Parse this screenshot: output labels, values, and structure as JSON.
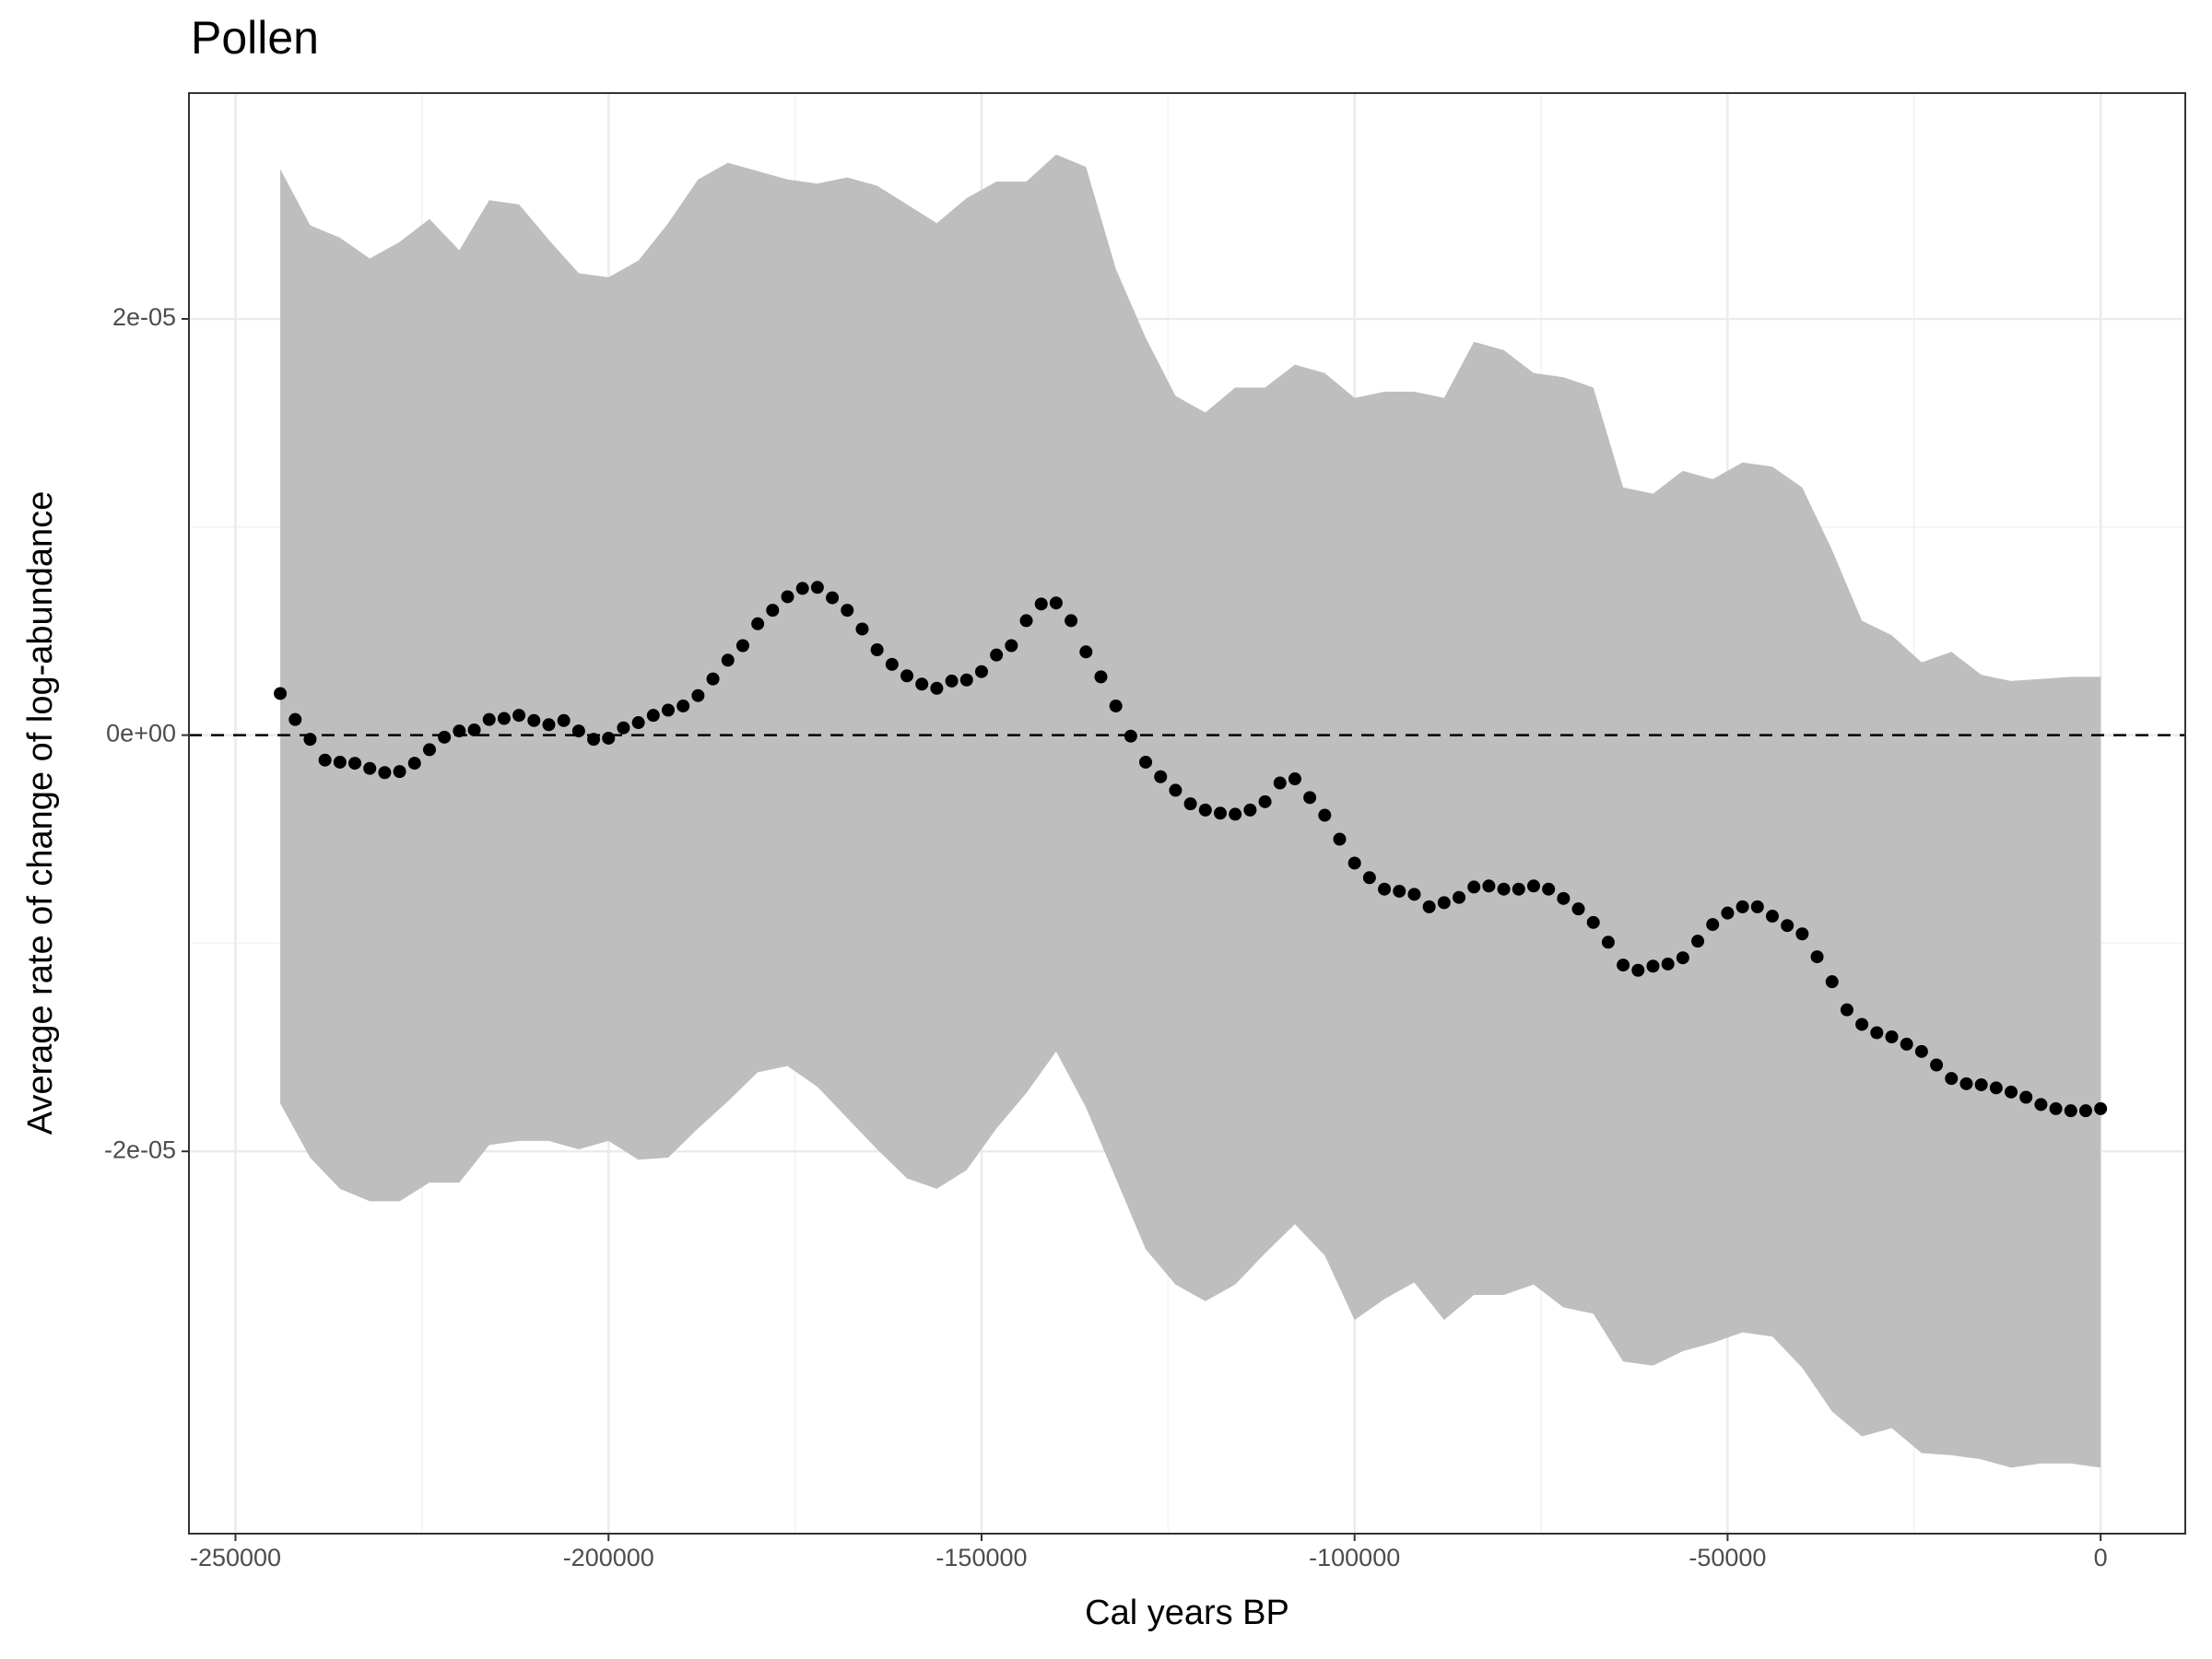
{
  "chart_data": {
    "type": "line",
    "title": "Pollen",
    "x_label": "Cal years BP",
    "y_label": "Average rate of change of log-abundance",
    "xlim": [
      -256240,
      11346
    ],
    "ylim": [
      -3.837e-05,
      3.085e-05
    ],
    "xticks": [
      -250000,
      -200000,
      -150000,
      -100000,
      -50000,
      0
    ],
    "yticks": [
      {
        "value": -2e-05,
        "label": "-2e-05"
      },
      {
        "value": 0,
        "label": "0e+00"
      },
      {
        "value": 2e-05,
        "label": "2e-05"
      }
    ],
    "grid": true,
    "hline": 0,
    "ribbon": {
      "color": "#bebebe",
      "x": [
        -244000,
        -240000,
        -236000,
        -232000,
        -228000,
        -224000,
        -220000,
        -216000,
        -212000,
        -208000,
        -204000,
        -200000,
        -196000,
        -192000,
        -188000,
        -184000,
        -180000,
        -176000,
        -172000,
        -168000,
        -164000,
        -160000,
        -156000,
        -152000,
        -148000,
        -144000,
        -140000,
        -136000,
        -132000,
        -128000,
        -124000,
        -120000,
        -116000,
        -112000,
        -108000,
        -104000,
        -100000,
        -96000,
        -92000,
        -88000,
        -84000,
        -80000,
        -76000,
        -72000,
        -68000,
        -64000,
        -60000,
        -56000,
        -52000,
        -48000,
        -44000,
        -40000,
        -36000,
        -32000,
        -28000,
        -24000,
        -20000,
        -16000,
        -12000,
        -8000,
        -4000,
        0
      ],
      "upper": [
        2.72e-05,
        2.45e-05,
        2.39e-05,
        2.29e-05,
        2.37e-05,
        2.48e-05,
        2.33e-05,
        2.57e-05,
        2.55e-05,
        2.38e-05,
        2.22e-05,
        2.2e-05,
        2.28e-05,
        2.46e-05,
        2.67e-05,
        2.75e-05,
        2.71e-05,
        2.67e-05,
        2.65e-05,
        2.68e-05,
        2.64e-05,
        2.55e-05,
        2.46e-05,
        2.58e-05,
        2.66e-05,
        2.66e-05,
        2.79e-05,
        2.73e-05,
        2.24e-05,
        1.91e-05,
        1.63e-05,
        1.55e-05,
        1.67e-05,
        1.67e-05,
        1.78e-05,
        1.74e-05,
        1.62e-05,
        1.65e-05,
        1.65e-05,
        1.62e-05,
        1.89e-05,
        1.85e-05,
        1.74e-05,
        1.72e-05,
        1.67e-05,
        1.19e-05,
        1.16e-05,
        1.27e-05,
        1.23e-05,
        1.31e-05,
        1.29e-05,
        1.19e-05,
        8.9e-06,
        5.5e-06,
        4.8e-06,
        3.5e-06,
        4e-06,
        2.9e-06,
        2.6e-06,
        2.7e-06,
        2.8e-06,
        2.8e-06
      ],
      "lower": [
        -1.77e-05,
        -2.03e-05,
        -2.18e-05,
        -2.24e-05,
        -2.24e-05,
        -2.15e-05,
        -2.15e-05,
        -1.97e-05,
        -1.95e-05,
        -1.95e-05,
        -1.99e-05,
        -1.95e-05,
        -2.04e-05,
        -2.03e-05,
        -1.89e-05,
        -1.76e-05,
        -1.62e-05,
        -1.59e-05,
        -1.69e-05,
        -1.84e-05,
        -1.99e-05,
        -2.13e-05,
        -2.18e-05,
        -2.09e-05,
        -1.89e-05,
        -1.72e-05,
        -1.52e-05,
        -1.79e-05,
        -2.13e-05,
        -2.47e-05,
        -2.64e-05,
        -2.72e-05,
        -2.64e-05,
        -2.49e-05,
        -2.35e-05,
        -2.5e-05,
        -2.81e-05,
        -2.71e-05,
        -2.63e-05,
        -2.81e-05,
        -2.69e-05,
        -2.69e-05,
        -2.64e-05,
        -2.75e-05,
        -2.78e-05,
        -3.01e-05,
        -3.03e-05,
        -2.96e-05,
        -2.92e-05,
        -2.87e-05,
        -2.89e-05,
        -3.04e-05,
        -3.25e-05,
        -3.37e-05,
        -3.33e-05,
        -3.45e-05,
        -3.46e-05,
        -3.48e-05,
        -3.52e-05,
        -3.5e-05,
        -3.5e-05,
        -3.52e-05
      ]
    },
    "points": {
      "color": "#000000",
      "x": [
        -244000,
        -242000,
        -240000,
        -238000,
        -236000,
        -234000,
        -232000,
        -230000,
        -228000,
        -226000,
        -224000,
        -222000,
        -220000,
        -218000,
        -216000,
        -214000,
        -212000,
        -210000,
        -208000,
        -206000,
        -204000,
        -202000,
        -200000,
        -198000,
        -196000,
        -194000,
        -192000,
        -190000,
        -188000,
        -186000,
        -184000,
        -182000,
        -180000,
        -178000,
        -176000,
        -174000,
        -172000,
        -170000,
        -168000,
        -166000,
        -164000,
        -162000,
        -160000,
        -158000,
        -156000,
        -154000,
        -152000,
        -150000,
        -148000,
        -146000,
        -144000,
        -142000,
        -140000,
        -138000,
        -136000,
        -134000,
        -132000,
        -130000,
        -128000,
        -126000,
        -124000,
        -122000,
        -120000,
        -118000,
        -116000,
        -114000,
        -112000,
        -110000,
        -108000,
        -106000,
        -104000,
        -102000,
        -100000,
        -98000,
        -96000,
        -94000,
        -92000,
        -90000,
        -88000,
        -86000,
        -84000,
        -82000,
        -80000,
        -78000,
        -76000,
        -74000,
        -72000,
        -70000,
        -68000,
        -66000,
        -64000,
        -62000,
        -60000,
        -58000,
        -56000,
        -54000,
        -52000,
        -50000,
        -48000,
        -46000,
        -44000,
        -42000,
        -40000,
        -38000,
        -36000,
        -34000,
        -32000,
        -30000,
        -28000,
        -26000,
        -24000,
        -22000,
        -20000,
        -18000,
        -16000,
        -14000,
        -12000,
        -10000,
        -8000,
        -6000,
        -4000,
        -2000,
        0
      ],
      "values": [
        2e-06,
        7.5e-07,
        -2e-07,
        -1.2e-06,
        -1.3e-06,
        -1.35e-06,
        -1.6e-06,
        -1.8e-06,
        -1.75e-06,
        -1.35e-06,
        -7e-07,
        -1e-07,
        2e-07,
        2.5e-07,
        7.5e-07,
        8e-07,
        9.5e-07,
        7e-07,
        5e-07,
        7e-07,
        2e-07,
        -2e-07,
        -1.5e-07,
        3.5e-07,
        6e-07,
        9.5e-07,
        1.2e-06,
        1.4e-06,
        1.9e-06,
        2.7e-06,
        3.6e-06,
        4.3e-06,
        5.35e-06,
        6e-06,
        6.65e-06,
        7.05e-06,
        7.1e-06,
        6.6e-06,
        6e-06,
        5.1e-06,
        4.1e-06,
        3.4e-06,
        2.85e-06,
        2.45e-06,
        2.25e-06,
        2.6e-06,
        2.65e-06,
        3.05e-06,
        3.85e-06,
        4.3e-06,
        5.5e-06,
        6.3e-06,
        6.35e-06,
        5.5e-06,
        4e-06,
        2.8e-06,
        1.4e-06,
        -5e-08,
        -1.3e-06,
        -2e-06,
        -2.65e-06,
        -3.3e-06,
        -3.6e-06,
        -3.75e-06,
        -3.8e-06,
        -3.6e-06,
        -3.2e-06,
        -2.3e-06,
        -2.1e-06,
        -3e-06,
        -3.85e-06,
        -5e-06,
        -6.15e-06,
        -6.85e-06,
        -7.4e-06,
        -7.5e-06,
        -7.65e-06,
        -8.25e-06,
        -8.05e-06,
        -7.8e-06,
        -7.3e-06,
        -7.25e-06,
        -7.4e-06,
        -7.4e-06,
        -7.25e-06,
        -7.4e-06,
        -7.85e-06,
        -8.35e-06,
        -9e-06,
        -9.95e-06,
        -1.105e-05,
        -1.13e-05,
        -1.11e-05,
        -1.1e-05,
        -1.07e-05,
        -9.9e-06,
        -9.1e-06,
        -8.55e-06,
        -8.25e-06,
        -8.25e-06,
        -8.7e-06,
        -9.15e-06,
        -9.55e-06,
        -1.065e-05,
        -1.185e-05,
        -1.32e-05,
        -1.39e-05,
        -1.43e-05,
        -1.45e-05,
        -1.485e-05,
        -1.52e-05,
        -1.585e-05,
        -1.65e-05,
        -1.675e-05,
        -1.68e-05,
        -1.695e-05,
        -1.715e-05,
        -1.74e-05,
        -1.775e-05,
        -1.795e-05,
        -1.805e-05,
        -1.805e-05,
        -1.795e-05
      ]
    }
  }
}
